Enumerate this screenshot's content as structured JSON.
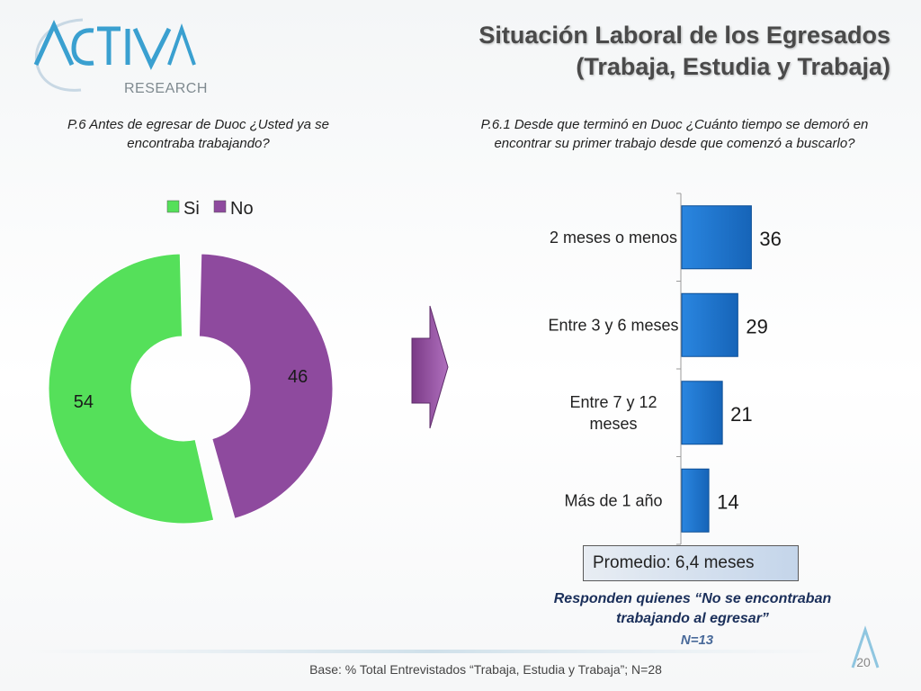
{
  "logo": {
    "text": "RESEARCH"
  },
  "title": {
    "line1": "Situación Laboral de los Egresados",
    "line2": "(Trabaja, Estudia y Trabaja)"
  },
  "question_left": "P.6 Antes de egresar de Duoc ¿Usted ya se encontraba trabajando?",
  "question_right": "P.6.1 Desde que terminó en Duoc ¿Cuánto tiempo se demoró en encontrar su primer trabajo desde que comenzó a buscarlo?",
  "chart_data": [
    {
      "type": "pie",
      "variant": "doughnut",
      "legend_position": "top",
      "categories": [
        "Si",
        "No"
      ],
      "values": [
        54,
        46
      ],
      "colors": [
        "#55e05a",
        "#8e4a9e"
      ]
    },
    {
      "type": "bar",
      "orientation": "horizontal",
      "categories": [
        "2 meses o menos",
        "Entre 3 y 6 meses",
        "Entre 7 y 12 meses",
        "Más de 1 año"
      ],
      "category_lines": [
        [
          "2 meses o menos"
        ],
        [
          "Entre 3 y 6 meses"
        ],
        [
          "Entre 7 y 12",
          "meses"
        ],
        [
          "Más de 1 año"
        ]
      ],
      "values": [
        36,
        29,
        21,
        14
      ],
      "xlim": [
        0,
        100
      ],
      "color": "#1f78d4"
    }
  ],
  "promedio": "Promedio: 6,4 meses",
  "responden": "Responden quienes “No se encontraban trabajando al egresar”",
  "n_sub": "N=13",
  "base": "Base: % Total Entrevistados “Trabaja, Estudia y Trabaja”; N=28",
  "page_number": "20"
}
